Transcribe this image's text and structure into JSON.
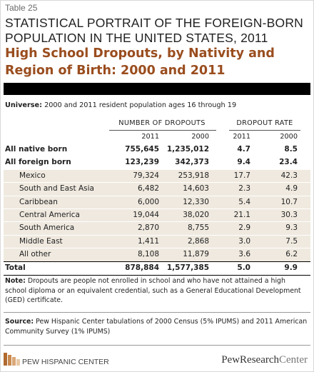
{
  "header": {
    "label": "Table 25",
    "title_lines": [
      "STATISTICAL PORTRAIT OF THE FOREIGN-BORN",
      "POPULATION IN THE UNITED STATES, 2011"
    ],
    "subtitle_lines": [
      "High School Dropouts, by Nativity and",
      "Region of Birth: 2000 and 2011"
    ]
  },
  "universe": {
    "label": "Universe:",
    "text": "2000 and 2011 resident population ages 16 through 19"
  },
  "table": {
    "groups": [
      "NUMBER OF DROPOUTS",
      "DROPOUT RATE"
    ],
    "years": [
      "2011",
      "2000",
      "2011",
      "2000"
    ],
    "rows": [
      {
        "bold": true,
        "cells": [
          "All native born",
          "755,645",
          "1,235,012",
          "4.7",
          "8.5"
        ]
      },
      {
        "bold": true,
        "cells": [
          "All foreign born",
          "123,239",
          "342,373",
          "9.4",
          "23.4"
        ]
      },
      {
        "bold": false,
        "cells": [
          "Mexico",
          "79,324",
          "253,918",
          "17.7",
          "42.3"
        ]
      },
      {
        "bold": false,
        "cells": [
          "South and East Asia",
          "6,482",
          "14,603",
          "2.3",
          "4.9"
        ]
      },
      {
        "bold": false,
        "cells": [
          "Caribbean",
          "6,000",
          "12,330",
          "5.4",
          "10.7"
        ]
      },
      {
        "bold": false,
        "cells": [
          "Central America",
          "19,044",
          "38,020",
          "21.1",
          "30.3"
        ]
      },
      {
        "bold": false,
        "cells": [
          "South America",
          "2,870",
          "8,755",
          "2.9",
          "9.3"
        ]
      },
      {
        "bold": false,
        "cells": [
          "Middle East",
          "1,411",
          "2,868",
          "3.0",
          "7.5"
        ]
      },
      {
        "bold": false,
        "cells": [
          "All other",
          "8,108",
          "11,879",
          "3.6",
          "6.2"
        ]
      },
      {
        "bold": true,
        "cells": [
          "Total",
          "878,884",
          "1,577,385",
          "5.0",
          "9.9"
        ]
      }
    ]
  },
  "note": {
    "label": "Note:",
    "text": "Dropouts are people not enrolled in school and who have not attained a high school diploma or an equivalent credential, such as a General Educational Development (GED) certificate."
  },
  "source": {
    "label": "Source:",
    "text": "Pew Hispanic Center tabulations of 2000 Census (5% IPUMS) and 2011 American Community Survey (1% IPUMS)"
  },
  "footer": {
    "left": "PEW HISPANIC CENTER",
    "right_a": "PewResearch",
    "right_b": "Center"
  }
}
